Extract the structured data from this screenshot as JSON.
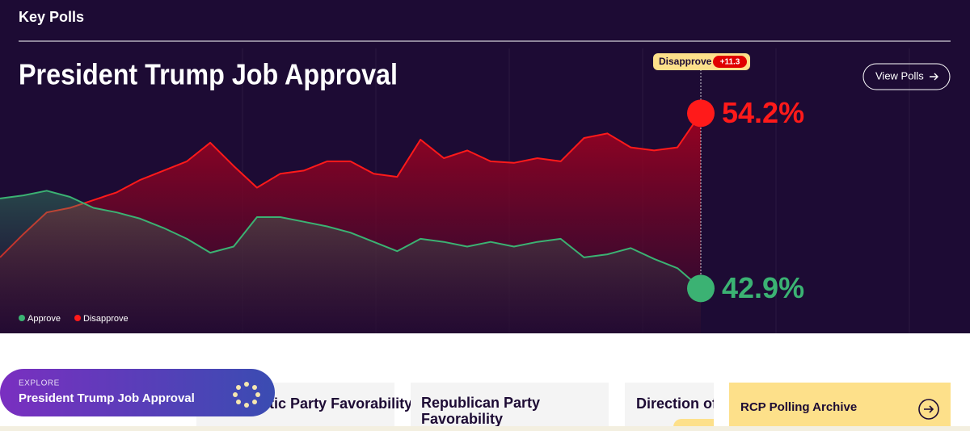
{
  "header": {
    "title": "Key Polls",
    "button": "View Polls"
  },
  "chart_data": {
    "type": "area",
    "title": "President Trump Job Approval",
    "ylim": [
      40,
      56.3
    ],
    "lead": {
      "name": "Disapprove",
      "value": 11.3,
      "label": "+11.3"
    },
    "series": [
      {
        "name": "Approve",
        "color": "#3bb273",
        "values": [
          48.7,
          48.9,
          49.2,
          48.8,
          48.1,
          47.8,
          47.4,
          46.8,
          46.1,
          45.2,
          45.6,
          47.5,
          47.5,
          47.2,
          46.9,
          46.5,
          45.9,
          45.3,
          46.1,
          45.9,
          45.6,
          45.9,
          45.6,
          45.9,
          46.1,
          44.9,
          45.1,
          45.5,
          44.8,
          44.2,
          42.9
        ],
        "value_labels": [
          null,
          null,
          null,
          null,
          null,
          null,
          null,
          null,
          null,
          null,
          null,
          null,
          null,
          null,
          null,
          null,
          null,
          null,
          null,
          null,
          null,
          null,
          null,
          null,
          null,
          null,
          null,
          null,
          null,
          null,
          "42.9%"
        ]
      },
      {
        "name": "Disapprove",
        "color": "#ff1a1a",
        "values": [
          44.9,
          46.4,
          47.8,
          48.1,
          48.6,
          49.1,
          49.9,
          50.5,
          51.1,
          52.3,
          50.8,
          49.4,
          50.3,
          50.5,
          51.1,
          51.1,
          50.3,
          50.1,
          52.5,
          51.3,
          51.8,
          51.1,
          51.0,
          51.3,
          51.1,
          52.6,
          52.9,
          52.0,
          51.8,
          52.0,
          54.2
        ],
        "value_labels": [
          null,
          null,
          null,
          null,
          null,
          null,
          null,
          null,
          null,
          null,
          null,
          null,
          null,
          null,
          null,
          null,
          null,
          null,
          null,
          null,
          null,
          null,
          null,
          null,
          null,
          null,
          null,
          null,
          null,
          null,
          "54.2%"
        ]
      }
    ]
  },
  "explore": {
    "kicker": "EXPLORE",
    "title": "President Trump Job Approval"
  },
  "cards": [
    "Democratic Party Favorability",
    "Republican Party Favorability",
    "Direction of Country",
    "RCP Polling Archive"
  ]
}
